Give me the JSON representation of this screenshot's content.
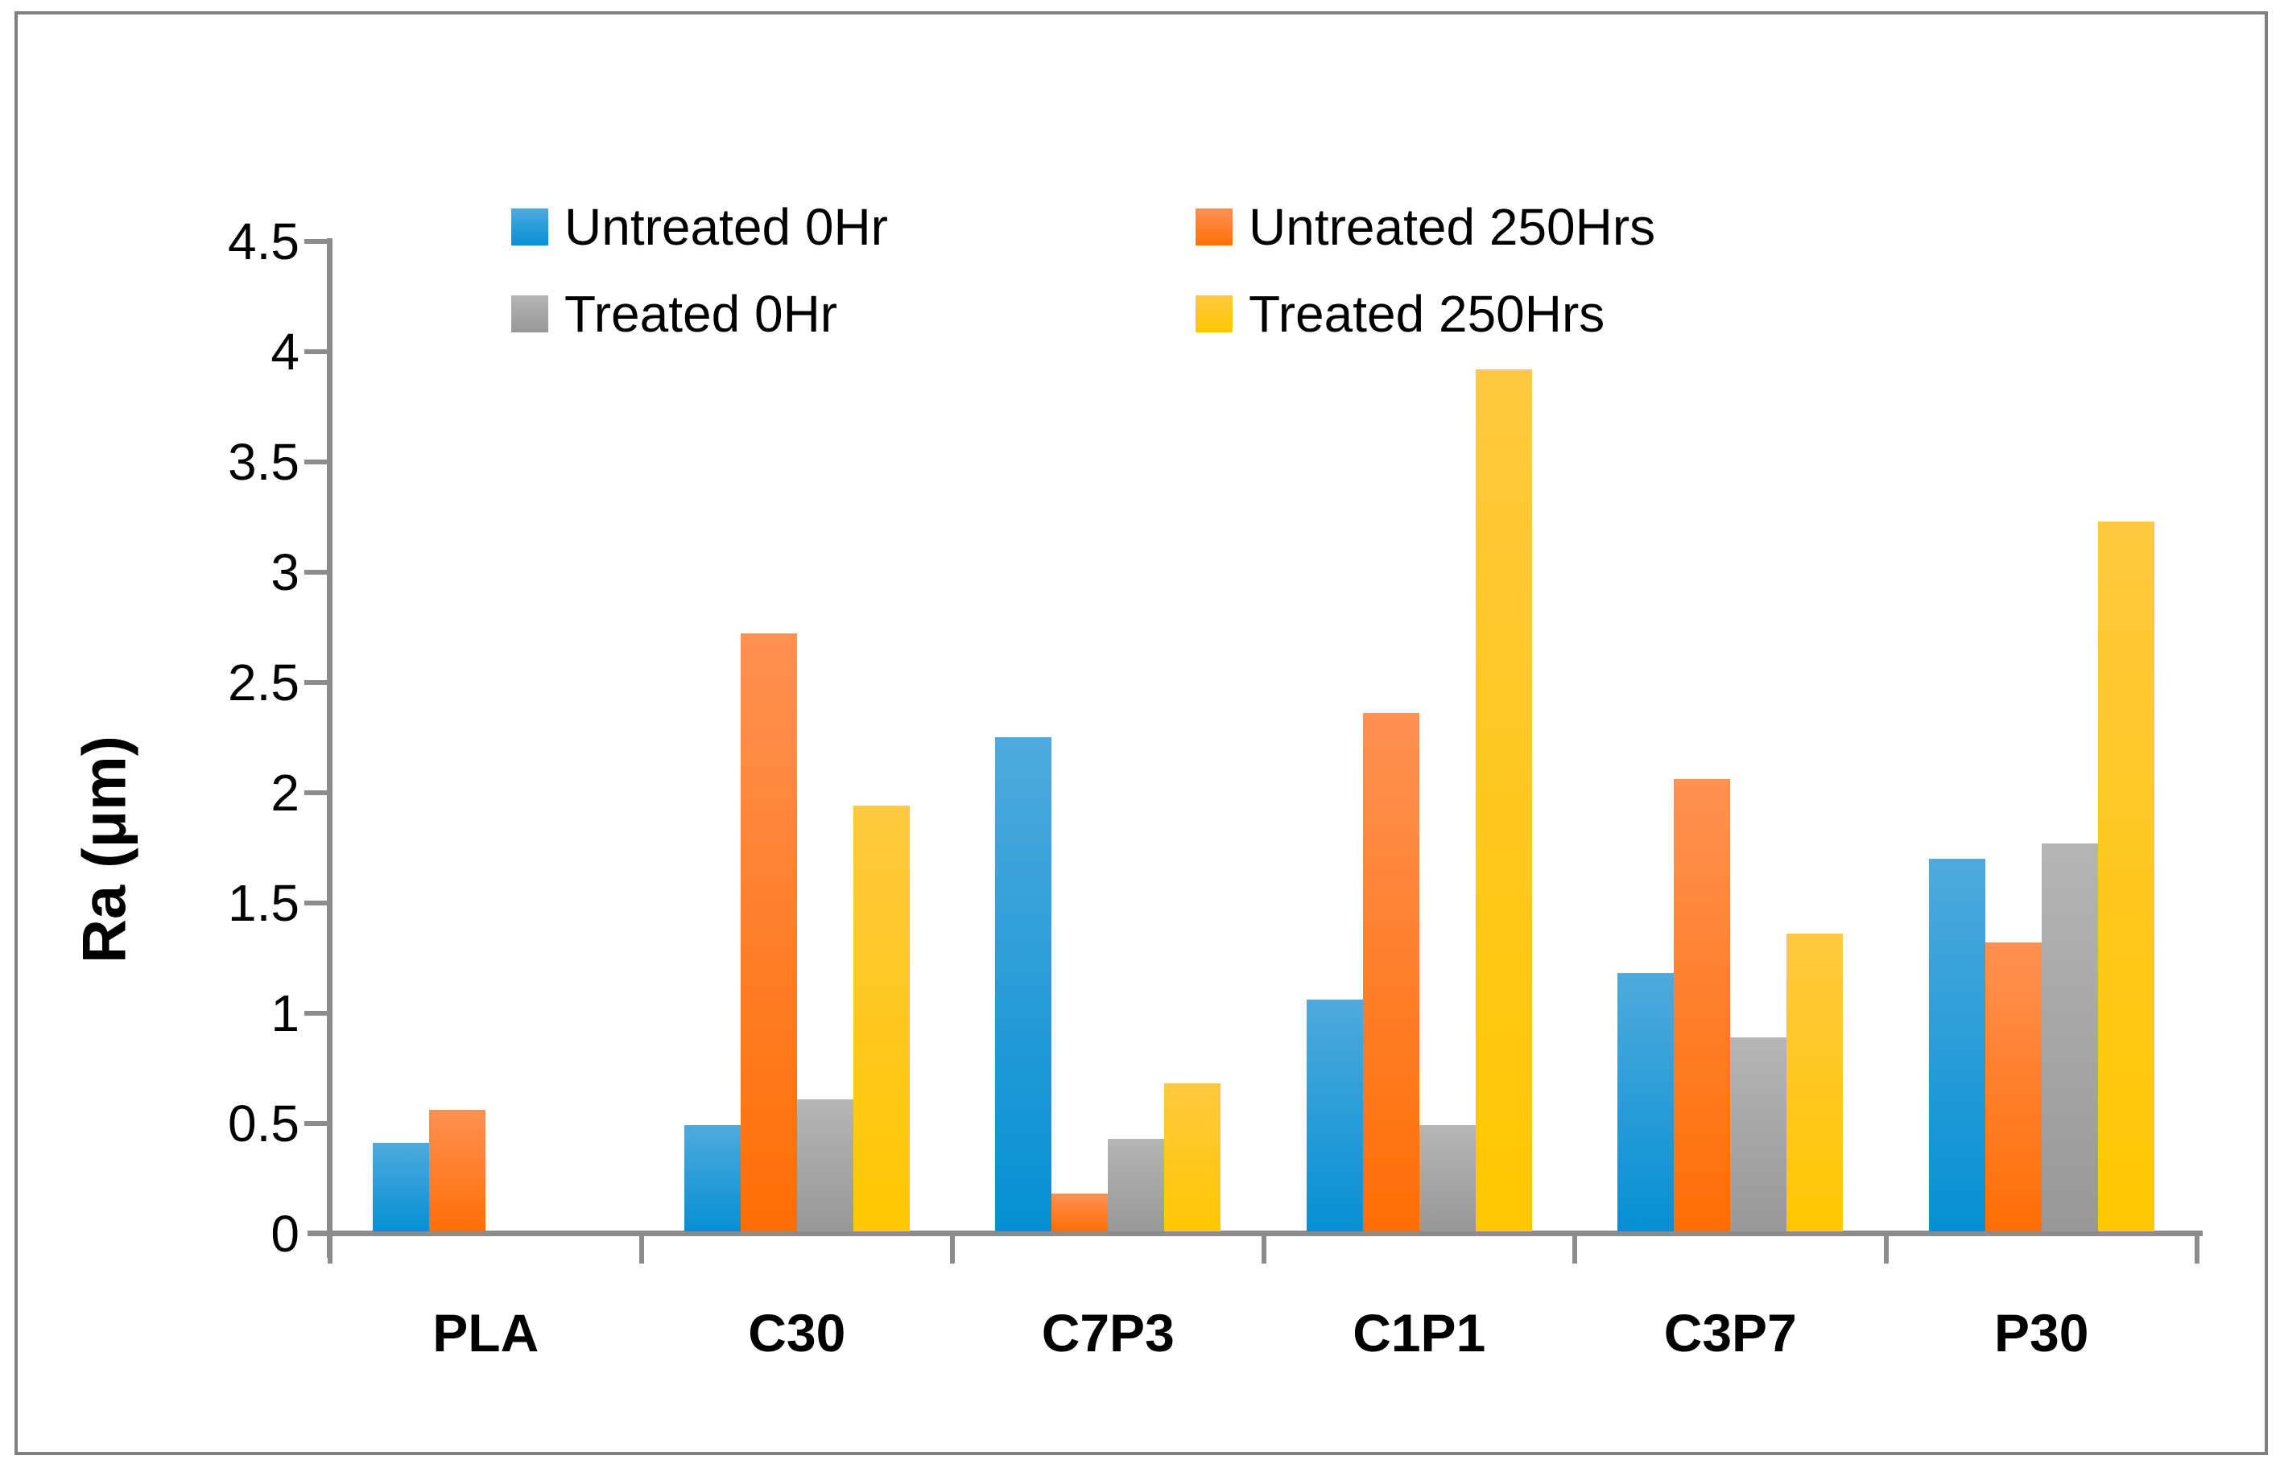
{
  "chart_data": {
    "type": "bar",
    "title": "",
    "xlabel": "",
    "ylabel": "Ra (μm)",
    "ylim": [
      0,
      4.5
    ],
    "ytick_step": 0.5,
    "ytick_labels": [
      "0",
      "0.5",
      "1",
      "1.5",
      "2",
      "2.5",
      "3",
      "3.5",
      "4",
      "4.5"
    ],
    "grid": false,
    "legend_position": "top-center",
    "axis_color": "#8c8c8c",
    "frame_color": "#7f7f7f",
    "text_color": "#000000",
    "categories": [
      "PLA",
      "C30",
      "C7P3",
      "C1P1",
      "C3P7",
      "P30"
    ],
    "series": [
      {
        "name": "Untreated 0Hr",
        "color_top": "#4faadd",
        "color_bottom": "#0590d3",
        "values": [
          0.4,
          0.48,
          2.24,
          1.05,
          1.17,
          1.69
        ]
      },
      {
        "name": "Untreated 250Hrs",
        "color_top": "#ff9153",
        "color_bottom": "#ff6e05",
        "values": [
          0.55,
          2.71,
          0.17,
          2.35,
          2.05,
          1.31
        ]
      },
      {
        "name": "Treated 0Hr",
        "color_top": "#b5b5b5",
        "color_bottom": "#989898",
        "values": [
          0,
          0.6,
          0.42,
          0.48,
          0.88,
          1.76
        ]
      },
      {
        "name": "Treated 250Hrs",
        "color_top": "#ffc940",
        "color_bottom": "#ffc801",
        "values": [
          0,
          1.93,
          0.67,
          3.91,
          1.35,
          3.22
        ]
      }
    ]
  }
}
